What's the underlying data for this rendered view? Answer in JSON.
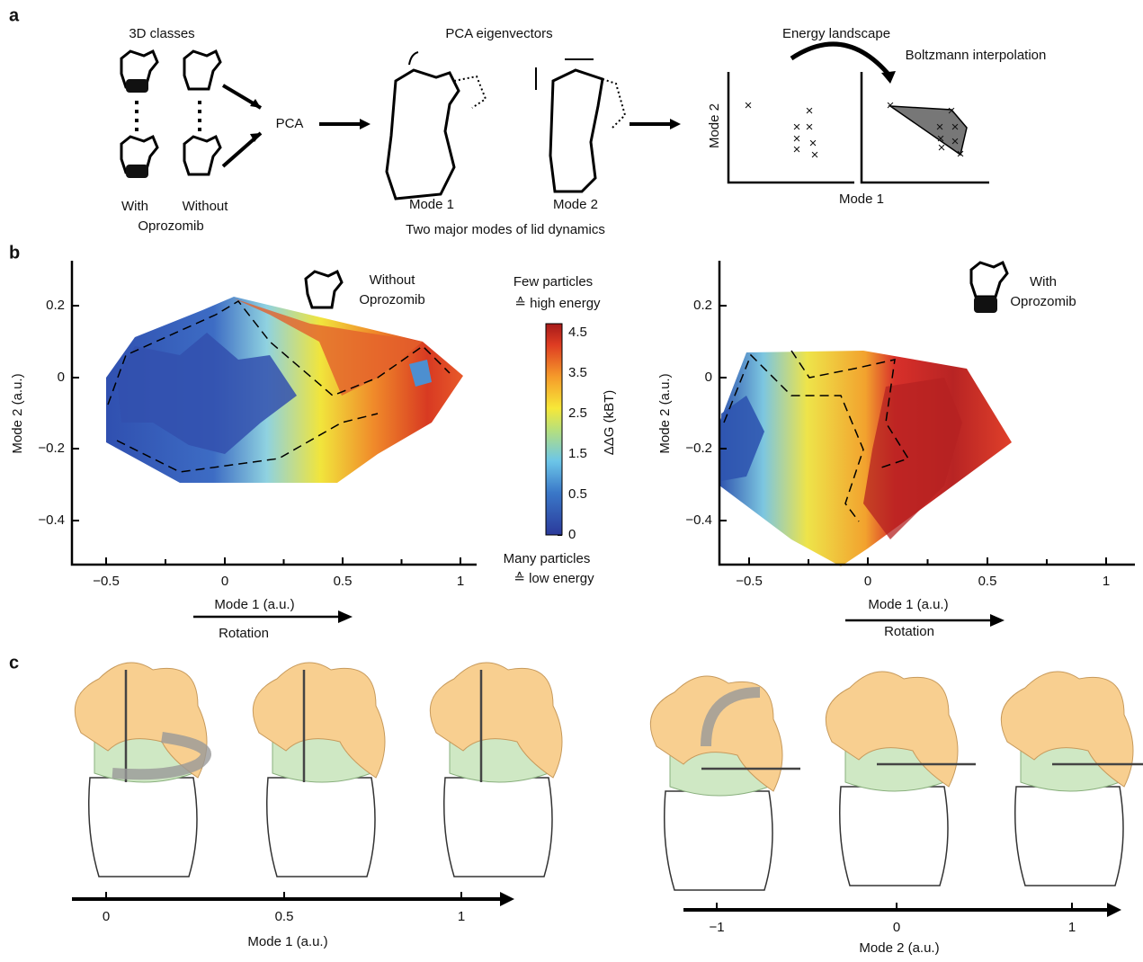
{
  "panel_a": {
    "label": "a",
    "classes_title": "3D classes",
    "with": "With",
    "without": "Without",
    "drug": "Oprozomib",
    "pca": "PCA",
    "eigen_title": "PCA eigenvectors",
    "mode1": "Mode 1",
    "mode2": "Mode 2",
    "caption": "Two major modes of lid dynamics",
    "energy_title": "Energy landscape",
    "boltzmann": "Boltzmann interpolation",
    "axis_y": "Mode 2",
    "axis_x": "Mode 1"
  },
  "panel_b": {
    "label": "b",
    "left": {
      "legend_1": "Without",
      "legend_2": "Oprozomib",
      "y_label": "Mode 2 (a.u.)",
      "x_label": "Mode 1 (a.u.)",
      "arrow_label": "Rotation",
      "yticks": [
        "0.2",
        "0",
        "−0.2",
        "−0.4"
      ],
      "xticks": [
        "−0.5",
        "0",
        "0.5",
        "1"
      ]
    },
    "colorbar": {
      "top_1": "Few particles",
      "top_2": "≙ high energy",
      "title": "ΔΔG (kBT)",
      "ticks": [
        "4.5",
        "3.5",
        "2.5",
        "1.5",
        "0.5",
        "0"
      ],
      "bottom_1": "Many particles",
      "bottom_2": "≙ low energy"
    },
    "right": {
      "legend_1": "With",
      "legend_2": "Oprozomib",
      "y_label": "Mode 2 (a.u.)",
      "x_label": "Mode 1 (a.u.)",
      "arrow_label": "Rotation",
      "yticks": [
        "0.2",
        "0",
        "−0.2",
        "−0.4"
      ],
      "xticks": [
        "−0.5",
        "0",
        "0.5",
        "1"
      ]
    }
  },
  "panel_c": {
    "label": "c",
    "left": {
      "ticks": [
        "0",
        "0.5",
        "1"
      ],
      "x_label": "Mode 1 (a.u.)"
    },
    "right": {
      "ticks": [
        "−1",
        "0",
        "1"
      ],
      "x_label": "Mode 2 (a.u.)"
    }
  }
}
